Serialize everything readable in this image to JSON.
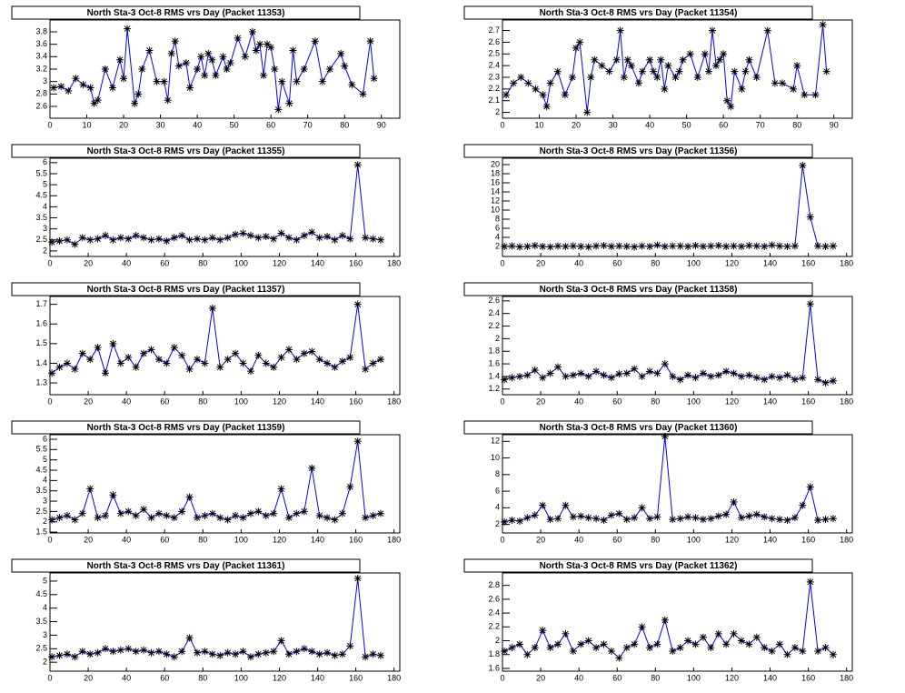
{
  "chart_data": [
    {
      "type": "line",
      "title": "North Sta-3 Oct-8 RMS vrs Day (Packet 11353)",
      "color": "#0000ff",
      "marker_color": "#000000",
      "x": [
        1,
        3,
        5,
        7,
        9,
        11,
        12,
        13,
        15,
        17,
        19,
        20,
        21,
        23,
        24,
        25,
        27,
        29,
        31,
        32,
        33,
        34,
        35,
        37,
        38,
        40,
        41,
        42,
        43,
        44,
        45,
        47,
        48,
        49,
        51,
        53,
        55,
        56,
        57,
        58,
        59,
        60,
        61,
        62,
        63,
        65,
        66,
        67,
        69,
        72,
        74,
        76,
        79,
        80,
        82,
        85,
        87,
        88
      ],
      "values": [
        2.9,
        2.92,
        2.85,
        3.05,
        2.95,
        2.9,
        2.65,
        2.7,
        3.2,
        2.9,
        3.35,
        3.05,
        3.85,
        2.65,
        2.8,
        3.2,
        3.5,
        3.0,
        3.0,
        2.7,
        3.45,
        3.65,
        3.25,
        3.3,
        2.9,
        3.2,
        3.4,
        3.1,
        3.45,
        3.35,
        3.1,
        3.4,
        3.2,
        3.3,
        3.7,
        3.4,
        3.8,
        3.5,
        3.6,
        3.1,
        3.6,
        3.55,
        3.2,
        2.55,
        3.0,
        2.65,
        3.5,
        3.0,
        3.2,
        3.65,
        3.0,
        3.2,
        3.45,
        3.25,
        2.95,
        2.8,
        3.65,
        3.05
      ],
      "xlim": [
        0,
        95
      ],
      "xticks": [
        0,
        10,
        20,
        30,
        40,
        50,
        60,
        70,
        80,
        90
      ],
      "ylim": [
        2.41,
        3.99
      ],
      "yticks": [
        2.6,
        2.8,
        3,
        3.2,
        3.4,
        3.6,
        3.8
      ]
    },
    {
      "type": "line",
      "title": "North Sta-3 Oct-8 RMS vrs Day (Packet 11354)",
      "color": "#0000ff",
      "marker_color": "#000000",
      "x": [
        1,
        3,
        5,
        7,
        9,
        11,
        12,
        13,
        15,
        17,
        19,
        20,
        21,
        23,
        24,
        25,
        27,
        29,
        31,
        32,
        33,
        34,
        35,
        37,
        38,
        40,
        41,
        42,
        43,
        44,
        45,
        47,
        48,
        49,
        51,
        53,
        55,
        56,
        57,
        58,
        59,
        60,
        61,
        62,
        63,
        65,
        66,
        67,
        69,
        72,
        74,
        76,
        79,
        80,
        82,
        85,
        87,
        88
      ],
      "values": [
        2.15,
        2.25,
        2.3,
        2.25,
        2.2,
        2.15,
        2.05,
        2.25,
        2.35,
        2.15,
        2.3,
        2.55,
        2.6,
        2.0,
        2.3,
        2.45,
        2.4,
        2.35,
        2.45,
        2.7,
        2.3,
        2.45,
        2.4,
        2.25,
        2.35,
        2.45,
        2.35,
        2.3,
        2.45,
        2.2,
        2.4,
        2.3,
        2.35,
        2.45,
        2.5,
        2.3,
        2.5,
        2.35,
        2.7,
        2.4,
        2.45,
        2.5,
        2.1,
        2.05,
        2.35,
        2.2,
        2.35,
        2.45,
        2.3,
        2.7,
        2.25,
        2.25,
        2.2,
        2.4,
        2.15,
        2.15,
        2.75,
        2.35
      ],
      "xlim": [
        0,
        95
      ],
      "xticks": [
        0,
        10,
        20,
        30,
        40,
        50,
        60,
        70,
        80,
        90
      ],
      "ylim": [
        1.95,
        2.79
      ],
      "yticks": [
        2,
        2.1,
        2.2,
        2.3,
        2.4,
        2.5,
        2.6,
        2.7
      ]
    },
    {
      "type": "line",
      "title": "North Sta-3 Oct-8 RMS vrs Day (Packet 11355)",
      "color": "#0000ff",
      "marker_color": "#000000",
      "x": [
        1,
        5,
        9,
        13,
        17,
        21,
        25,
        29,
        33,
        37,
        41,
        45,
        49,
        53,
        57,
        61,
        65,
        69,
        73,
        77,
        81,
        85,
        89,
        93,
        97,
        101,
        105,
        109,
        113,
        117,
        121,
        125,
        129,
        133,
        137,
        141,
        145,
        149,
        153,
        157,
        161,
        165,
        169,
        173
      ],
      "values": [
        2.4,
        2.45,
        2.5,
        2.3,
        2.6,
        2.5,
        2.55,
        2.7,
        2.5,
        2.6,
        2.55,
        2.7,
        2.6,
        2.5,
        2.55,
        2.45,
        2.6,
        2.7,
        2.5,
        2.55,
        2.5,
        2.6,
        2.5,
        2.6,
        2.75,
        2.8,
        2.7,
        2.6,
        2.65,
        2.55,
        2.8,
        2.6,
        2.5,
        2.7,
        2.85,
        2.6,
        2.65,
        2.5,
        2.7,
        2.55,
        5.9,
        2.6,
        2.55,
        2.5
      ],
      "xlim": [
        0,
        183
      ],
      "xticks": [
        0,
        20,
        40,
        60,
        80,
        100,
        120,
        140,
        160,
        180
      ],
      "ylim": [
        1.75,
        6.2
      ],
      "yticks": [
        2,
        2.5,
        3,
        3.5,
        4,
        4.5,
        5,
        5.5,
        6
      ]
    },
    {
      "type": "line",
      "title": "North Sta-3 Oct-8 RMS vrs Day (Packet 11356)",
      "color": "#0000ff",
      "marker_color": "#000000",
      "x": [
        1,
        5,
        9,
        13,
        17,
        21,
        25,
        29,
        33,
        37,
        41,
        45,
        49,
        53,
        57,
        61,
        65,
        69,
        73,
        77,
        81,
        85,
        89,
        93,
        97,
        101,
        105,
        109,
        113,
        117,
        121,
        125,
        129,
        133,
        137,
        141,
        145,
        149,
        153,
        157,
        161,
        165,
        169,
        173
      ],
      "values": [
        2,
        2.1,
        1.9,
        2,
        2.2,
        2,
        1.9,
        2.1,
        2,
        2.1,
        2,
        1.9,
        2.1,
        2.2,
        2,
        2.1,
        2,
        1.9,
        2.1,
        2,
        2.3,
        2,
        2.1,
        2.1,
        2,
        2.2,
        2,
        2.1,
        2.2,
        2,
        2.1,
        2,
        2.2,
        2.1,
        2,
        2.3,
        2.1,
        2,
        2.1,
        19.8,
        8.5,
        2.1,
        2,
        2.1
      ],
      "xlim": [
        0,
        183
      ],
      "xticks": [
        0,
        20,
        40,
        60,
        80,
        100,
        120,
        140,
        160,
        180
      ],
      "ylim": [
        -0.2,
        21.4
      ],
      "yticks": [
        2,
        4,
        6,
        8,
        10,
        12,
        14,
        16,
        18,
        20
      ]
    },
    {
      "type": "line",
      "title": "North Sta-3 Oct-8 RMS vrs Day (Packet 11357)",
      "color": "#0000ff",
      "marker_color": "#000000",
      "x": [
        1,
        5,
        9,
        13,
        17,
        21,
        25,
        29,
        33,
        37,
        41,
        45,
        49,
        53,
        57,
        61,
        65,
        69,
        73,
        77,
        81,
        85,
        89,
        93,
        97,
        101,
        105,
        109,
        113,
        117,
        121,
        125,
        129,
        133,
        137,
        141,
        145,
        149,
        153,
        157,
        161,
        165,
        169,
        173
      ],
      "values": [
        1.35,
        1.38,
        1.4,
        1.37,
        1.45,
        1.42,
        1.48,
        1.35,
        1.5,
        1.4,
        1.43,
        1.38,
        1.45,
        1.47,
        1.42,
        1.4,
        1.48,
        1.44,
        1.37,
        1.42,
        1.4,
        1.68,
        1.38,
        1.42,
        1.45,
        1.4,
        1.36,
        1.44,
        1.4,
        1.38,
        1.43,
        1.47,
        1.42,
        1.45,
        1.46,
        1.42,
        1.4,
        1.38,
        1.41,
        1.43,
        1.7,
        1.37,
        1.4,
        1.42
      ],
      "xlim": [
        0,
        183
      ],
      "xticks": [
        0,
        20,
        40,
        60,
        80,
        100,
        120,
        140,
        160,
        180
      ],
      "ylim": [
        1.24,
        1.74
      ],
      "yticks": [
        1.3,
        1.4,
        1.5,
        1.6,
        1.7
      ]
    },
    {
      "type": "line",
      "title": "North Sta-3 Oct-8 RMS vrs Day (Packet 11358)",
      "color": "#0000ff",
      "marker_color": "#000000",
      "x": [
        1,
        5,
        9,
        13,
        17,
        21,
        25,
        29,
        33,
        37,
        41,
        45,
        49,
        53,
        57,
        61,
        65,
        69,
        73,
        77,
        81,
        85,
        89,
        93,
        97,
        101,
        105,
        109,
        113,
        117,
        121,
        125,
        129,
        133,
        137,
        141,
        145,
        149,
        153,
        157,
        161,
        165,
        169,
        173
      ],
      "values": [
        1.35,
        1.38,
        1.4,
        1.42,
        1.5,
        1.38,
        1.45,
        1.55,
        1.4,
        1.42,
        1.45,
        1.4,
        1.48,
        1.42,
        1.38,
        1.44,
        1.45,
        1.52,
        1.4,
        1.48,
        1.45,
        1.6,
        1.4,
        1.35,
        1.42,
        1.38,
        1.45,
        1.4,
        1.42,
        1.48,
        1.45,
        1.4,
        1.42,
        1.38,
        1.35,
        1.4,
        1.38,
        1.42,
        1.35,
        1.38,
        2.55,
        1.35,
        1.3,
        1.33
      ],
      "xlim": [
        0,
        183
      ],
      "xticks": [
        0,
        20,
        40,
        60,
        80,
        100,
        120,
        140,
        160,
        180
      ],
      "ylim": [
        1.11,
        2.67
      ],
      "yticks": [
        1.2,
        1.4,
        1.6,
        1.8,
        2,
        2.2,
        2.4,
        2.6
      ]
    },
    {
      "type": "line",
      "title": "North Sta-3 Oct-8 RMS vrs Day (Packet 11359)",
      "color": "#0000ff",
      "marker_color": "#000000",
      "x": [
        1,
        5,
        9,
        13,
        17,
        21,
        25,
        29,
        33,
        37,
        41,
        45,
        49,
        53,
        57,
        61,
        65,
        69,
        73,
        77,
        81,
        85,
        89,
        93,
        97,
        101,
        105,
        109,
        113,
        117,
        121,
        125,
        129,
        133,
        137,
        141,
        145,
        149,
        153,
        157,
        161,
        165,
        169,
        173
      ],
      "values": [
        2.1,
        2.2,
        2.3,
        2.1,
        2.4,
        3.6,
        2.2,
        2.3,
        3.3,
        2.4,
        2.5,
        2.3,
        2.6,
        2.2,
        2.4,
        2.3,
        2.2,
        2.5,
        3.2,
        2.2,
        2.3,
        2.4,
        2.2,
        2.1,
        2.3,
        2.2,
        2.4,
        2.5,
        2.3,
        2.4,
        3.6,
        2.2,
        2.4,
        2.5,
        4.6,
        2.3,
        2.2,
        2.1,
        2.4,
        3.7,
        5.9,
        2.2,
        2.3,
        2.4
      ],
      "xlim": [
        0,
        183
      ],
      "xticks": [
        0,
        20,
        40,
        60,
        80,
        100,
        120,
        140,
        160,
        180
      ],
      "ylim": [
        1.46,
        6.22
      ],
      "yticks": [
        1.5,
        2,
        2.5,
        3,
        3.5,
        4,
        4.5,
        5,
        5.5,
        6
      ]
    },
    {
      "type": "line",
      "title": "North Sta-3 Oct-8 RMS vrs Day (Packet 11360)",
      "color": "#0000ff",
      "marker_color": "#000000",
      "x": [
        1,
        5,
        9,
        13,
        17,
        21,
        25,
        29,
        33,
        37,
        41,
        45,
        49,
        53,
        57,
        61,
        65,
        69,
        73,
        77,
        81,
        85,
        89,
        93,
        97,
        101,
        105,
        109,
        113,
        117,
        121,
        125,
        129,
        133,
        137,
        141,
        145,
        149,
        153,
        157,
        161,
        165,
        169,
        173
      ],
      "values": [
        2.3,
        2.5,
        2.4,
        2.8,
        3.1,
        4.3,
        2.6,
        2.7,
        4.3,
        2.9,
        3.0,
        2.8,
        2.7,
        2.5,
        3.1,
        3.3,
        2.6,
        2.8,
        4.0,
        2.7,
        2.9,
        12.6,
        2.6,
        2.7,
        2.9,
        2.8,
        2.6,
        2.7,
        3.0,
        3.2,
        4.7,
        2.8,
        3.0,
        3.2,
        2.9,
        2.7,
        2.6,
        2.5,
        2.8,
        4.3,
        6.5,
        2.5,
        2.6,
        2.7
      ],
      "xlim": [
        0,
        183
      ],
      "xticks": [
        0,
        20,
        40,
        60,
        80,
        100,
        120,
        140,
        160,
        180
      ],
      "ylim": [
        0.97,
        12.8
      ],
      "yticks": [
        2,
        4,
        6,
        8,
        10,
        12
      ]
    },
    {
      "type": "line",
      "title": "North Sta-3 Oct-8 RMS vrs Day (Packet 11361)",
      "color": "#0000ff",
      "marker_color": "#000000",
      "x": [
        1,
        5,
        9,
        13,
        17,
        21,
        25,
        29,
        33,
        37,
        41,
        45,
        49,
        53,
        57,
        61,
        65,
        69,
        73,
        77,
        81,
        85,
        89,
        93,
        97,
        101,
        105,
        109,
        113,
        117,
        121,
        125,
        129,
        133,
        137,
        141,
        145,
        149,
        153,
        157,
        161,
        165,
        169,
        173
      ],
      "values": [
        2.2,
        2.25,
        2.3,
        2.2,
        2.4,
        2.3,
        2.35,
        2.5,
        2.4,
        2.45,
        2.5,
        2.4,
        2.45,
        2.35,
        2.4,
        2.3,
        2.2,
        2.4,
        2.9,
        2.35,
        2.4,
        2.3,
        2.25,
        2.35,
        2.3,
        2.4,
        2.2,
        2.3,
        2.35,
        2.4,
        2.8,
        2.3,
        2.4,
        2.5,
        2.4,
        2.3,
        2.35,
        2.25,
        2.3,
        2.6,
        5.1,
        2.2,
        2.3,
        2.25
      ],
      "xlim": [
        0,
        183
      ],
      "xticks": [
        0,
        20,
        40,
        60,
        80,
        100,
        120,
        140,
        160,
        180
      ],
      "ylim": [
        1.67,
        5.3
      ],
      "yticks": [
        2,
        2.5,
        3,
        3.5,
        4,
        4.5,
        5
      ]
    },
    {
      "type": "line",
      "title": "North Sta-3 Oct-8 RMS vrs Day (Packet 11362)",
      "color": "#0000ff",
      "marker_color": "#000000",
      "x": [
        1,
        5,
        9,
        13,
        17,
        21,
        25,
        29,
        33,
        37,
        41,
        45,
        49,
        53,
        57,
        61,
        65,
        69,
        73,
        77,
        81,
        85,
        89,
        93,
        97,
        101,
        105,
        109,
        113,
        117,
        121,
        125,
        129,
        133,
        137,
        141,
        145,
        149,
        153,
        157,
        161,
        165,
        169,
        173
      ],
      "values": [
        1.85,
        1.9,
        1.95,
        1.8,
        1.9,
        2.15,
        1.9,
        1.95,
        2.1,
        1.85,
        1.95,
        2.0,
        1.9,
        1.95,
        1.85,
        1.75,
        1.9,
        1.95,
        2.2,
        1.9,
        1.95,
        2.3,
        1.85,
        1.9,
        2.0,
        1.95,
        2.05,
        1.9,
        2.1,
        1.95,
        2.1,
        2.0,
        1.95,
        2.05,
        1.9,
        1.85,
        1.95,
        1.8,
        1.9,
        1.85,
        2.85,
        1.85,
        1.9,
        1.8
      ],
      "xlim": [
        0,
        183
      ],
      "xticks": [
        0,
        20,
        40,
        60,
        80,
        100,
        120,
        140,
        160,
        180
      ],
      "ylim": [
        1.56,
        2.98
      ],
      "yticks": [
        1.6,
        1.8,
        2,
        2.2,
        2.4,
        2.6,
        2.8
      ]
    }
  ]
}
